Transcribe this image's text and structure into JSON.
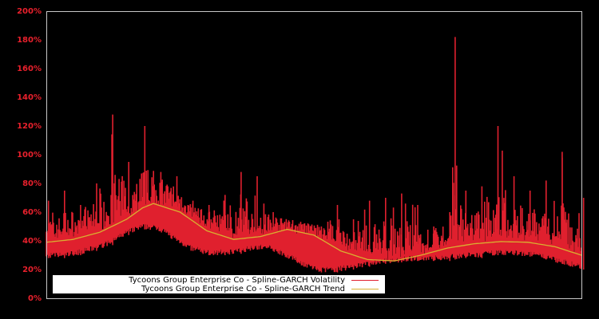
{
  "chart_data": {
    "type": "line",
    "title": "",
    "xlabel": "",
    "ylabel": "",
    "ylim": [
      0,
      200
    ],
    "y_ticks": [
      "0%",
      "20%",
      "40%",
      "60%",
      "80%",
      "100%",
      "120%",
      "140%",
      "160%",
      "180%",
      "200%"
    ],
    "grid": false,
    "legend_position": "lower left",
    "colors": {
      "background": "#000000",
      "axes_frame": "#c8c8c8",
      "tick_labels": "#e8202c",
      "volatility": "#e0202e",
      "trend": "#d9b030"
    },
    "series": [
      {
        "name": "Tycoons Group Enterprise Co - Spline-GARCH Volatility",
        "style": "noisy spikes",
        "x_frac": [
          0.0,
          0.03,
          0.06,
          0.09,
          0.12,
          0.15,
          0.18,
          0.21,
          0.24,
          0.27,
          0.3,
          0.33,
          0.36,
          0.39,
          0.42,
          0.45,
          0.48,
          0.51,
          0.54,
          0.57,
          0.6,
          0.63,
          0.66,
          0.69,
          0.72,
          0.75,
          0.76,
          0.78,
          0.81,
          0.84,
          0.87,
          0.9,
          0.93,
          0.96,
          1.0
        ],
        "baseline": [
          28,
          28,
          30,
          33,
          37,
          44,
          48,
          47,
          40,
          33,
          30,
          30,
          31,
          34,
          33,
          28,
          22,
          18,
          18,
          20,
          22,
          24,
          25,
          26,
          26,
          26,
          27,
          28,
          28,
          30,
          30,
          29,
          27,
          24,
          20
        ],
        "peaks": [
          68,
          75,
          65,
          80,
          128,
          95,
          120,
          88,
          85,
          68,
          65,
          72,
          88,
          85,
          60,
          45,
          40,
          50,
          65,
          55,
          68,
          70,
          73,
          65,
          50,
          60,
          182,
          75,
          78,
          120,
          85,
          75,
          82,
          102,
          70
        ]
      },
      {
        "name": "Tycoons Group Enterprise Co - Spline-GARCH Trend",
        "x_frac": [
          0.0,
          0.05,
          0.1,
          0.15,
          0.18,
          0.2,
          0.25,
          0.3,
          0.35,
          0.4,
          0.45,
          0.5,
          0.55,
          0.6,
          0.65,
          0.7,
          0.75,
          0.8,
          0.85,
          0.9,
          0.95,
          1.0
        ],
        "values": [
          39,
          41,
          46,
          55,
          63,
          66,
          60,
          47,
          41,
          43,
          48,
          44,
          33,
          27,
          26,
          30,
          35,
          38,
          39.5,
          39,
          36,
          30
        ]
      }
    ]
  },
  "legend": {
    "items": [
      {
        "label": "Tycoons Group Enterprise Co - Spline-GARCH Volatility",
        "color": "#e0202e"
      },
      {
        "label": "Tycoons Group Enterprise Co - Spline-GARCH Trend",
        "color": "#d9b030"
      }
    ]
  }
}
